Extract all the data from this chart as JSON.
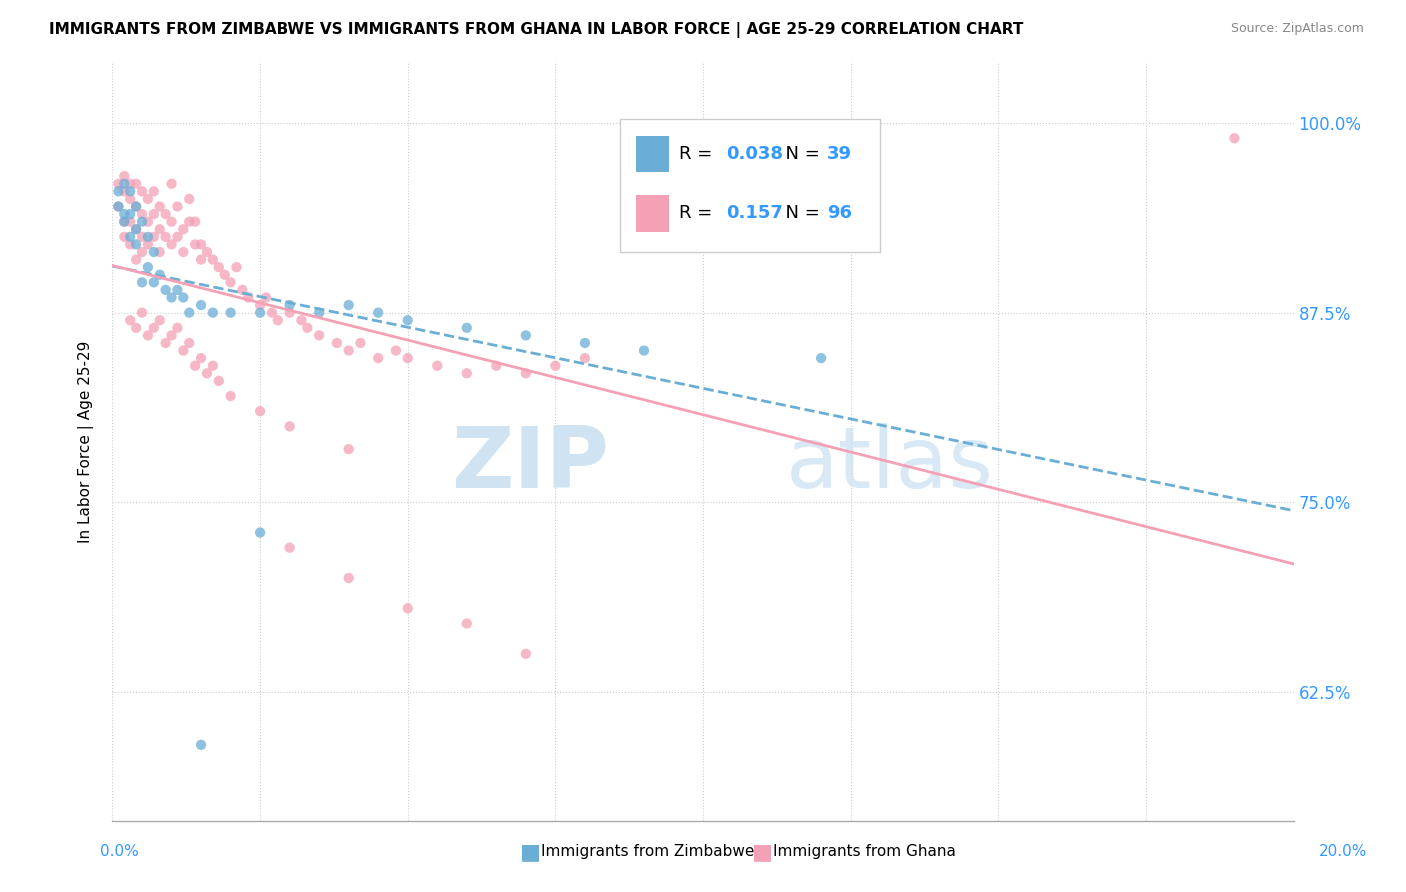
{
  "title": "IMMIGRANTS FROM ZIMBABWE VS IMMIGRANTS FROM GHANA IN LABOR FORCE | AGE 25-29 CORRELATION CHART",
  "source": "Source: ZipAtlas.com",
  "ylabel": "In Labor Force | Age 25-29",
  "right_yticks": [
    0.625,
    0.75,
    0.875,
    1.0
  ],
  "right_yticklabels": [
    "62.5%",
    "75.0%",
    "87.5%",
    "100.0%"
  ],
  "xlim": [
    0.0,
    0.2
  ],
  "ylim": [
    0.54,
    1.04
  ],
  "zimbabwe_color": "#6aaed6",
  "ghana_color": "#f4a0b5",
  "zimbabwe_R": 0.038,
  "zimbabwe_N": 39,
  "ghana_R": 0.157,
  "ghana_N": 96,
  "legend_label_zimbabwe": "Immigrants from Zimbabwe",
  "legend_label_ghana": "Immigrants from Ghana",
  "watermark_zip": "ZIP",
  "watermark_atlas": "atlas",
  "background_color": "#ffffff",
  "dot_alpha": 0.75,
  "dot_size": 55,
  "zimbabwe_x": [
    0.001,
    0.001,
    0.002,
    0.002,
    0.002,
    0.003,
    0.003,
    0.003,
    0.004,
    0.004,
    0.004,
    0.005,
    0.005,
    0.006,
    0.006,
    0.007,
    0.007,
    0.008,
    0.009,
    0.01,
    0.011,
    0.012,
    0.013,
    0.015,
    0.017,
    0.02,
    0.025,
    0.03,
    0.035,
    0.04,
    0.045,
    0.05,
    0.06,
    0.07,
    0.08,
    0.09,
    0.12,
    0.015,
    0.025
  ],
  "zimbabwe_y": [
    0.955,
    0.945,
    0.96,
    0.94,
    0.935,
    0.955,
    0.94,
    0.925,
    0.945,
    0.93,
    0.92,
    0.935,
    0.895,
    0.925,
    0.905,
    0.915,
    0.895,
    0.9,
    0.89,
    0.885,
    0.89,
    0.885,
    0.875,
    0.88,
    0.875,
    0.875,
    0.875,
    0.88,
    0.875,
    0.88,
    0.875,
    0.87,
    0.865,
    0.86,
    0.855,
    0.85,
    0.845,
    0.59,
    0.73
  ],
  "ghana_x": [
    0.001,
    0.001,
    0.002,
    0.002,
    0.002,
    0.002,
    0.003,
    0.003,
    0.003,
    0.003,
    0.004,
    0.004,
    0.004,
    0.004,
    0.005,
    0.005,
    0.005,
    0.005,
    0.006,
    0.006,
    0.006,
    0.007,
    0.007,
    0.007,
    0.008,
    0.008,
    0.008,
    0.009,
    0.009,
    0.01,
    0.01,
    0.01,
    0.011,
    0.011,
    0.012,
    0.012,
    0.013,
    0.013,
    0.014,
    0.014,
    0.015,
    0.015,
    0.016,
    0.017,
    0.018,
    0.019,
    0.02,
    0.021,
    0.022,
    0.023,
    0.025,
    0.026,
    0.027,
    0.028,
    0.03,
    0.032,
    0.033,
    0.035,
    0.038,
    0.04,
    0.042,
    0.045,
    0.048,
    0.05,
    0.055,
    0.06,
    0.065,
    0.07,
    0.075,
    0.08,
    0.003,
    0.004,
    0.005,
    0.006,
    0.007,
    0.008,
    0.009,
    0.01,
    0.011,
    0.012,
    0.013,
    0.014,
    0.015,
    0.016,
    0.017,
    0.018,
    0.02,
    0.025,
    0.03,
    0.04,
    0.03,
    0.04,
    0.05,
    0.06,
    0.07,
    0.19
  ],
  "ghana_y": [
    0.96,
    0.945,
    0.955,
    0.935,
    0.965,
    0.925,
    0.95,
    0.935,
    0.96,
    0.92,
    0.945,
    0.93,
    0.91,
    0.96,
    0.94,
    0.925,
    0.955,
    0.915,
    0.935,
    0.95,
    0.92,
    0.94,
    0.925,
    0.955,
    0.93,
    0.915,
    0.945,
    0.925,
    0.94,
    0.92,
    0.935,
    0.96,
    0.925,
    0.945,
    0.93,
    0.915,
    0.935,
    0.95,
    0.92,
    0.935,
    0.91,
    0.92,
    0.915,
    0.91,
    0.905,
    0.9,
    0.895,
    0.905,
    0.89,
    0.885,
    0.88,
    0.885,
    0.875,
    0.87,
    0.875,
    0.87,
    0.865,
    0.86,
    0.855,
    0.85,
    0.855,
    0.845,
    0.85,
    0.845,
    0.84,
    0.835,
    0.84,
    0.835,
    0.84,
    0.845,
    0.87,
    0.865,
    0.875,
    0.86,
    0.865,
    0.87,
    0.855,
    0.86,
    0.865,
    0.85,
    0.855,
    0.84,
    0.845,
    0.835,
    0.84,
    0.83,
    0.82,
    0.81,
    0.8,
    0.785,
    0.72,
    0.7,
    0.68,
    0.67,
    0.65,
    0.99
  ]
}
